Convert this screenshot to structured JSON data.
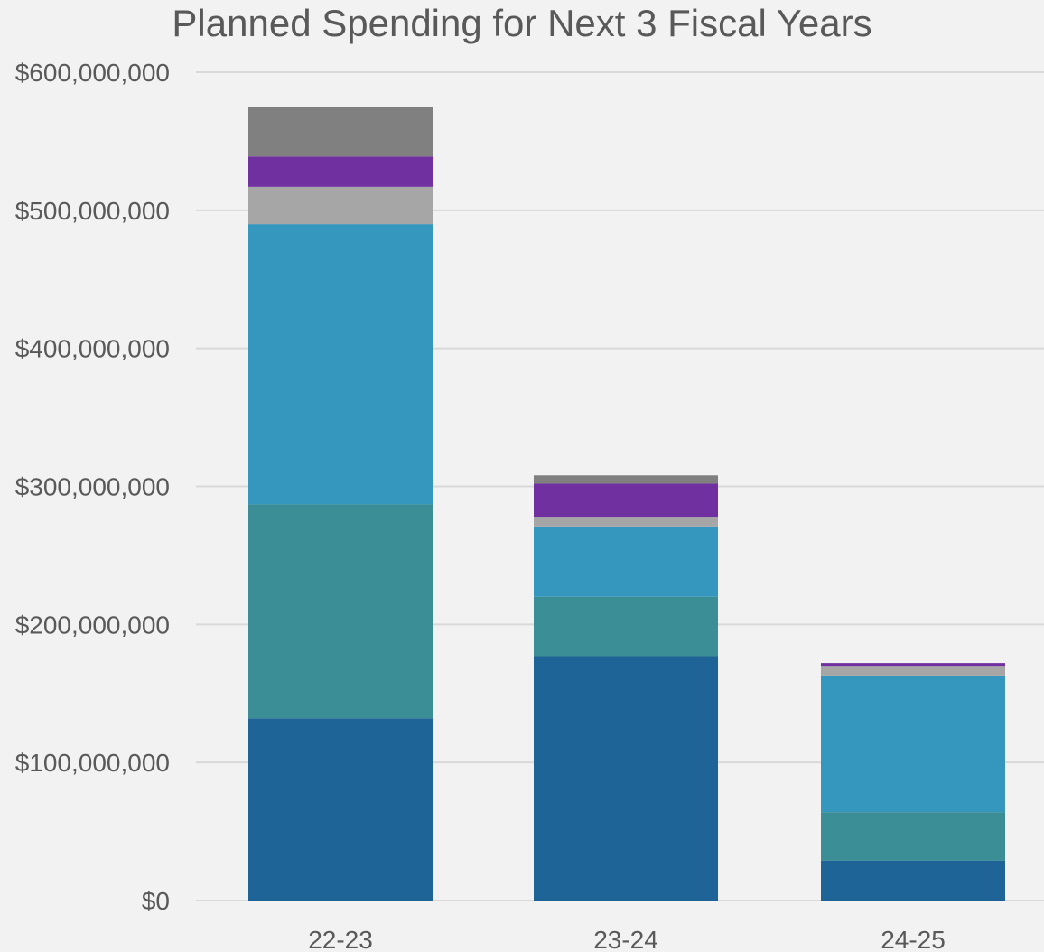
{
  "chart_data": {
    "type": "bar",
    "stacked": true,
    "title": "Planned Spending for Next 3 Fiscal Years",
    "xlabel": "",
    "ylabel": "",
    "categories": [
      "22-23",
      "23-24",
      "24-25"
    ],
    "ylim": [
      0,
      600000000
    ],
    "yticks": [
      0,
      100000000,
      200000000,
      300000000,
      400000000,
      500000000,
      600000000
    ],
    "ytick_labels": [
      "$0",
      "$100,000,000",
      "$200,000,000",
      "$300,000,000",
      "$400,000,000",
      "$500,000,000",
      "$600,000,000"
    ],
    "grid": true,
    "legend": "none",
    "series": [
      {
        "color": "#1f6496",
        "values": [
          132000000,
          177000000,
          29000000
        ]
      },
      {
        "color": "#3c8e96",
        "values": [
          155000000,
          43000000,
          35000000
        ]
      },
      {
        "color": "#3596be",
        "values": [
          203000000,
          51000000,
          99000000
        ]
      },
      {
        "color": "#a6a6a6",
        "values": [
          27000000,
          7000000,
          7000000
        ]
      },
      {
        "color": "#7030a0",
        "values": [
          22000000,
          24000000,
          2000000
        ]
      },
      {
        "color": "#808080",
        "values": [
          36000000,
          6000000,
          0
        ]
      }
    ]
  }
}
